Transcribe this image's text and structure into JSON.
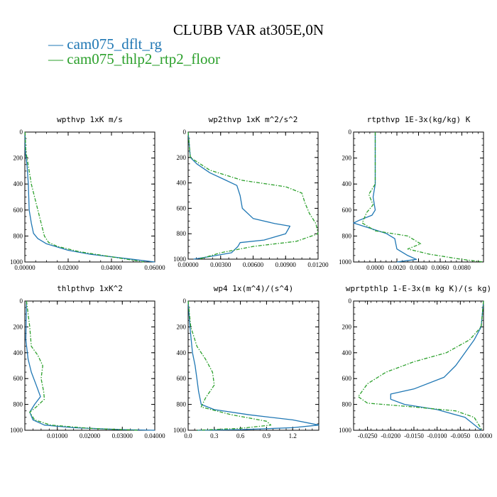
{
  "figure": {
    "title": "CLUBB VAR at305E,0N",
    "legend": [
      {
        "name": "— cam075_dflt_rg",
        "color": "#1f77b4"
      },
      {
        "name": "— cam075_thlp2_rtp2_floor",
        "color": "#2ca02c"
      }
    ]
  },
  "chart_data": [
    {
      "type": "line",
      "title": "wpthvp  1xK m/s",
      "xlim": [
        0,
        0.06
      ],
      "ylim": [
        0,
        1000
      ],
      "y_inverted": true,
      "xticks": [
        0,
        0.02,
        0.04,
        0.06
      ],
      "xticklabels": [
        "0.00000",
        "0.02000",
        "0.04000",
        "0.06000"
      ],
      "yticks": [
        0,
        200,
        400,
        600,
        800,
        1000
      ],
      "yticklabels": [
        "0",
        "200",
        "400",
        "600",
        "800",
        "1000"
      ],
      "grid": false,
      "series": [
        {
          "name": "cam075_dflt_rg",
          "color": "#1f77b4",
          "dashed": false,
          "x": [
            0.0001,
            0.0002,
            0.001,
            0.0016,
            0.002,
            0.003,
            0.004,
            0.006,
            0.008,
            0.01,
            0.014,
            0.02,
            0.03,
            0.04,
            0.05,
            0.06
          ],
          "y": [
            0,
            150,
            250,
            400,
            600,
            700,
            780,
            820,
            840,
            860,
            880,
            910,
            940,
            960,
            980,
            1000
          ]
        },
        {
          "name": "cam075_thlp2_rtp2_floor",
          "color": "#2ca02c",
          "dashed": true,
          "x": [
            0.0001,
            0.0005,
            0.0015,
            0.003,
            0.0045,
            0.006,
            0.0075,
            0.009,
            0.011,
            0.015,
            0.025,
            0.04,
            0.055
          ],
          "y": [
            0,
            150,
            250,
            400,
            500,
            600,
            700,
            800,
            850,
            880,
            920,
            960,
            1000
          ]
        }
      ]
    },
    {
      "type": "line",
      "title": "wp2thvp  1xK m^2/s^2",
      "xlim": [
        0,
        0.012
      ],
      "ylim": [
        0,
        1000
      ],
      "y_inverted": true,
      "xticks": [
        0,
        0.003,
        0.006,
        0.009,
        0.012
      ],
      "xticklabels": [
        "0.00000",
        "0.00300",
        "0.00600",
        "0.00900",
        "0.01200"
      ],
      "yticks": [
        0,
        200,
        400,
        600,
        800,
        1000
      ],
      "yticklabels": [
        "0",
        "200",
        "400",
        "600",
        "800",
        "1000"
      ],
      "grid": false,
      "series": [
        {
          "name": "cam075_dflt_rg",
          "color": "#1f77b4",
          "dashed": false,
          "x": [
            0.0,
            0.0002,
            0.0008,
            0.002,
            0.0035,
            0.0045,
            0.0048,
            0.005,
            0.006,
            0.008,
            0.0094,
            0.009,
            0.007,
            0.0048,
            0.0046,
            0.004,
            0.002,
            0.0005
          ],
          "y": [
            0,
            200,
            250,
            320,
            380,
            420,
            500,
            600,
            680,
            720,
            740,
            800,
            850,
            870,
            900,
            950,
            980,
            1000
          ]
        },
        {
          "name": "cam075_thlp2_rtp2_floor",
          "color": "#2ca02c",
          "dashed": true,
          "x": [
            0.0,
            0.0002,
            0.002,
            0.005,
            0.009,
            0.0105,
            0.0108,
            0.0112,
            0.0118,
            0.012,
            0.01,
            0.006,
            0.003,
            0.001
          ],
          "y": [
            0,
            200,
            300,
            380,
            430,
            480,
            560,
            640,
            720,
            800,
            860,
            900,
            950,
            1000
          ]
        }
      ]
    },
    {
      "type": "line",
      "title": "rtpthvp  1E-3x(kg/kg) K",
      "xlim": [
        -0.002,
        0.01
      ],
      "ylim": [
        0,
        1000
      ],
      "y_inverted": true,
      "xticks": [
        0,
        0.002,
        0.004,
        0.006,
        0.008
      ],
      "xticklabels": [
        "0.0000",
        "0.0020",
        "0.0040",
        "0.0060",
        "0.0080"
      ],
      "yticks": [
        0,
        200,
        400,
        600,
        800,
        1000
      ],
      "yticklabels": [
        "0",
        "200",
        "400",
        "600",
        "800",
        "1000"
      ],
      "grid": false,
      "series": [
        {
          "name": "cam075_dflt_rg",
          "color": "#1f77b4",
          "dashed": false,
          "x": [
            0.0,
            0.0,
            -0.0002,
            0.0,
            -0.0003,
            -0.0015,
            -0.002,
            -0.0005,
            0.001,
            0.0018,
            0.002,
            0.003,
            0.0038,
            0.002
          ],
          "y": [
            0,
            400,
            500,
            600,
            640,
            680,
            700,
            740,
            780,
            820,
            900,
            950,
            980,
            1000
          ]
        },
        {
          "name": "cam075_thlp2_rtp2_floor",
          "color": "#2ca02c",
          "dashed": true,
          "x": [
            0.0,
            0.0,
            -0.0006,
            -0.0002,
            -0.0008,
            -0.0012,
            0.0,
            0.003,
            0.0042,
            0.003,
            0.005,
            0.008,
            0.01
          ],
          "y": [
            0,
            400,
            480,
            560,
            620,
            700,
            760,
            800,
            860,
            900,
            940,
            980,
            1000
          ]
        }
      ]
    },
    {
      "type": "line",
      "title": "thlpthvp  1xK^2",
      "xlim": [
        0,
        0.04
      ],
      "ylim": [
        0,
        1000
      ],
      "y_inverted": true,
      "xticks": [
        0.01,
        0.02,
        0.03,
        0.04
      ],
      "xticklabels": [
        "0.01000",
        "0.02000",
        "0.03000",
        "0.04000"
      ],
      "yticks": [
        0,
        200,
        400,
        600,
        800,
        1000
      ],
      "yticklabels": [
        "0",
        "200",
        "400",
        "600",
        "800",
        "1000"
      ],
      "grid": false,
      "series": [
        {
          "name": "cam075_dflt_rg",
          "color": "#1f77b4",
          "dashed": false,
          "x": [
            0.0005,
            0.0003,
            0.001,
            0.002,
            0.0035,
            0.0048,
            0.003,
            0.0015,
            0.0025,
            0.006,
            0.015,
            0.03,
            0.04
          ],
          "y": [
            0,
            300,
            450,
            550,
            650,
            740,
            800,
            860,
            920,
            960,
            980,
            995,
            1000
          ]
        },
        {
          "name": "cam075_thlp2_rtp2_floor",
          "color": "#2ca02c",
          "dashed": true,
          "x": [
            0.0005,
            0.0015,
            0.002,
            0.004,
            0.0055,
            0.005,
            0.0058,
            0.006,
            0.0035,
            0.0015,
            0.003,
            0.008,
            0.02,
            0.035
          ],
          "y": [
            0,
            200,
            350,
            420,
            500,
            600,
            700,
            760,
            820,
            860,
            920,
            960,
            985,
            1000
          ]
        }
      ]
    },
    {
      "type": "line",
      "title": "wp4  1x(m^4)/(s^4)",
      "xlim": [
        0,
        1.5
      ],
      "ylim": [
        0,
        1000
      ],
      "y_inverted": true,
      "xticks": [
        0,
        0.3,
        0.6,
        0.9,
        1.2
      ],
      "xticklabels": [
        "0.0",
        "0.3",
        "0.6",
        "0.9",
        "1.2"
      ],
      "yticks": [
        0,
        200,
        400,
        600,
        800,
        1000
      ],
      "yticklabels": [
        "0",
        "200",
        "400",
        "600",
        "800",
        "1000"
      ],
      "grid": false,
      "series": [
        {
          "name": "cam075_dflt_rg",
          "color": "#1f77b4",
          "dashed": false,
          "x": [
            0.0,
            0.02,
            0.05,
            0.08,
            0.1,
            0.12,
            0.15,
            0.3,
            0.7,
            1.2,
            1.5,
            1.2,
            0.6,
            0.1
          ],
          "y": [
            0,
            200,
            400,
            500,
            600,
            700,
            800,
            840,
            880,
            920,
            960,
            980,
            995,
            1000
          ]
        },
        {
          "name": "cam075_thlp2_rtp2_floor",
          "color": "#2ca02c",
          "dashed": true,
          "x": [
            0.0,
            0.03,
            0.1,
            0.2,
            0.28,
            0.3,
            0.2,
            0.15,
            0.5,
            0.9,
            0.95,
            0.6,
            0.1
          ],
          "y": [
            0,
            200,
            350,
            450,
            550,
            650,
            750,
            820,
            880,
            930,
            960,
            985,
            1000
          ]
        }
      ]
    },
    {
      "type": "line",
      "title": "wprtpthlp  1-E-3x(m kg K)/(s kg)",
      "xlim": [
        -0.028,
        0
      ],
      "ylim": [
        0,
        1000
      ],
      "y_inverted": true,
      "xticks": [
        -0.025,
        -0.02,
        -0.015,
        -0.01,
        -0.005,
        0
      ],
      "xticklabels": [
        "-0.0250",
        "-0.0200",
        "-0.0150",
        "-0.0100",
        "-0.0050",
        "0.0000"
      ],
      "yticks": [
        0,
        200,
        400,
        600,
        800,
        1000
      ],
      "yticklabels": [
        "0",
        "200",
        "400",
        "600",
        "800",
        "1000"
      ],
      "grid": false,
      "series": [
        {
          "name": "cam075_dflt_rg",
          "color": "#1f77b4",
          "dashed": false,
          "x": [
            0.0,
            -0.0005,
            -0.002,
            -0.004,
            -0.006,
            -0.0085,
            -0.015,
            -0.02,
            -0.02,
            -0.017,
            -0.01,
            -0.004,
            -0.0005
          ],
          "y": [
            0,
            200,
            300,
            400,
            500,
            590,
            680,
            720,
            760,
            800,
            840,
            900,
            1000
          ]
        },
        {
          "name": "cam075_thlp2_rtp2_floor",
          "color": "#2ca02c",
          "dashed": true,
          "x": [
            0.0,
            -0.0005,
            -0.003,
            -0.008,
            -0.015,
            -0.021,
            -0.025,
            -0.027,
            -0.025,
            -0.015,
            -0.006,
            -0.002,
            -0.0003
          ],
          "y": [
            0,
            200,
            300,
            400,
            470,
            550,
            640,
            740,
            790,
            820,
            850,
            900,
            1000
          ]
        }
      ]
    }
  ]
}
